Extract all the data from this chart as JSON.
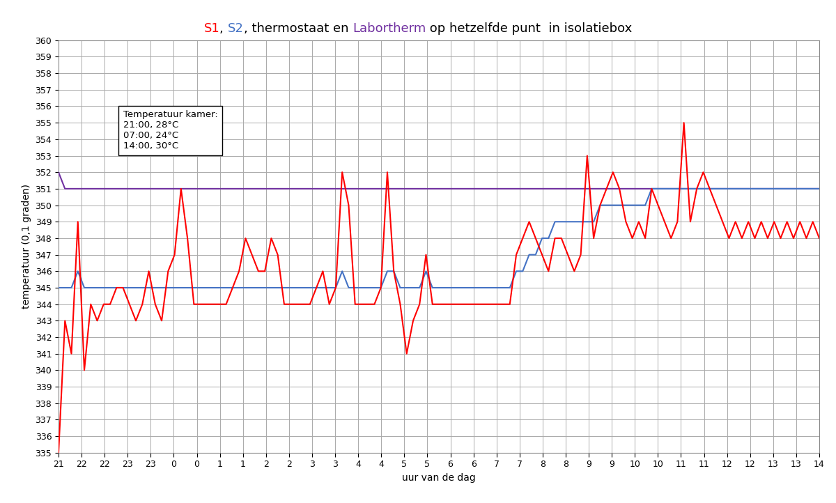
{
  "title_parts": [
    {
      "text": "S1",
      "color": "#FF0000"
    },
    {
      "text": ", ",
      "color": "#000000"
    },
    {
      "text": "S2",
      "color": "#4472C4"
    },
    {
      "text": ", thermostaat en ",
      "color": "#000000"
    },
    {
      "text": "Labortherm",
      "color": "#7030A0"
    },
    {
      "text": " op hetzelfde punt  in isolatiebox",
      "color": "#000000"
    }
  ],
  "ylabel": "temperatuur (0,1 graden)",
  "xlabel": "uur van de dag",
  "ylim": [
    335,
    360
  ],
  "yticks": [
    335,
    336,
    337,
    338,
    339,
    340,
    341,
    342,
    343,
    344,
    345,
    346,
    347,
    348,
    349,
    350,
    351,
    352,
    353,
    354,
    355,
    356,
    357,
    358,
    359,
    360
  ],
  "annotation_text": "Temperatuur kamer:\n21:00, 28°C\n07:00, 24°C\n14:00, 30°C",
  "s1_color": "#FF0000",
  "s2_color": "#4472C4",
  "therm_color": "#7030A0",
  "background_color": "#FFFFFF",
  "grid_color": "#AAAAAA",
  "tick_labels": [
    "21",
    "22",
    "22",
    "23",
    "23",
    "0",
    "0",
    "1",
    "1",
    "2",
    "2",
    "3",
    "3",
    "4",
    "4",
    "5",
    "5",
    "6",
    "6",
    "7",
    "7",
    "8",
    "8",
    "9",
    "9",
    "10",
    "10",
    "11",
    "11",
    "12",
    "12",
    "13",
    "13",
    "14"
  ],
  "s1_data": [
    335,
    343,
    341,
    349,
    340,
    344,
    343,
    344,
    344,
    345,
    345,
    344,
    343,
    344,
    346,
    344,
    343,
    346,
    347,
    351,
    348,
    344,
    344,
    344,
    344,
    344,
    344,
    345,
    346,
    348,
    347,
    346,
    346,
    348,
    347,
    344,
    344,
    344,
    344,
    344,
    345,
    346,
    344,
    345,
    352,
    350,
    344,
    344,
    344,
    344,
    345,
    352,
    346,
    344,
    341,
    343,
    344,
    347,
    344,
    344,
    344,
    344,
    344,
    344,
    344,
    344,
    344,
    344,
    344,
    344,
    344,
    347,
    348,
    349,
    348,
    347,
    346,
    348,
    348,
    347,
    346,
    347,
    353,
    348,
    350,
    351,
    352,
    351,
    349,
    348,
    349,
    348,
    351,
    350,
    349,
    348,
    349,
    355,
    349,
    351,
    352,
    351,
    350,
    349,
    348,
    349,
    348,
    349,
    348,
    349,
    348,
    349,
    348,
    349,
    348,
    349,
    348,
    349,
    348
  ],
  "s2_data": [
    345,
    345,
    345,
    346,
    345,
    345,
    345,
    345,
    345,
    345,
    345,
    345,
    345,
    345,
    345,
    345,
    345,
    345,
    345,
    345,
    345,
    345,
    345,
    345,
    345,
    345,
    345,
    345,
    345,
    345,
    345,
    345,
    345,
    345,
    345,
    345,
    345,
    345,
    345,
    345,
    345,
    345,
    345,
    345,
    346,
    345,
    345,
    345,
    345,
    345,
    345,
    346,
    346,
    345,
    345,
    345,
    345,
    346,
    345,
    345,
    345,
    345,
    345,
    345,
    345,
    345,
    345,
    345,
    345,
    345,
    345,
    346,
    346,
    347,
    347,
    348,
    348,
    349,
    349,
    349,
    349,
    349,
    349,
    349,
    350,
    350,
    350,
    350,
    350,
    350,
    350,
    350,
    351,
    351,
    351,
    351,
    351,
    351,
    351,
    351,
    351,
    351,
    351,
    351,
    351,
    351,
    351,
    351,
    351,
    351,
    351,
    351,
    351,
    351,
    351,
    351,
    351,
    351,
    351
  ],
  "therm_data": [
    352,
    351,
    351,
    351,
    351,
    351,
    351,
    351,
    351,
    351,
    351,
    351,
    351,
    351,
    351,
    351,
    351,
    351,
    351,
    351,
    351,
    351,
    351,
    351,
    351,
    351,
    351,
    351,
    351,
    351,
    351,
    351,
    351,
    351,
    351,
    351,
    351,
    351,
    351,
    351,
    351,
    351,
    351,
    351,
    351,
    351,
    351,
    351,
    351,
    351,
    351,
    351,
    351,
    351,
    351,
    351,
    351,
    351,
    351,
    351,
    351,
    351,
    351,
    351,
    351,
    351,
    351,
    351,
    351,
    351,
    351,
    351,
    351,
    351,
    351,
    351,
    351,
    351,
    351,
    351,
    351,
    351,
    351,
    351,
    351,
    351,
    351,
    351,
    351,
    351,
    351,
    351,
    351,
    351,
    351,
    351,
    351,
    351,
    351,
    351,
    351,
    351,
    351,
    351,
    351,
    351,
    351,
    351,
    351,
    351,
    351,
    351,
    351,
    351,
    351,
    351,
    351,
    351,
    351
  ],
  "title_fontsize": 13,
  "axis_label_fontsize": 10,
  "tick_fontsize": 9
}
